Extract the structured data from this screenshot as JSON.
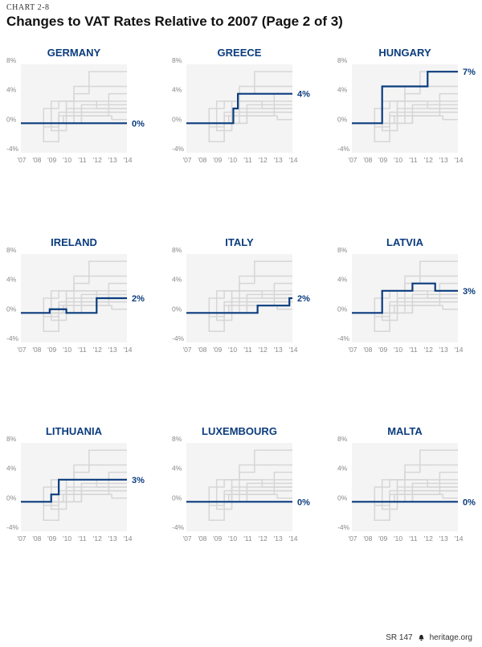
{
  "header": {
    "label": "CHART 2-8",
    "title": "Changes to VAT Rates Relative to 2007 (Page 2 of 3)"
  },
  "footer": {
    "report": "SR 147",
    "site": "heritage.org"
  },
  "colors": {
    "highlight": "#0b3c7e",
    "background_lines": "#d6d6d6",
    "panel_bg": "#f4f4f4",
    "axis_text": "#888888"
  },
  "chart_data": [
    {
      "type": "line",
      "title": "GERMANY",
      "end_label": "0%",
      "x": [
        "'07",
        "'08",
        "'09",
        "'10",
        "'11",
        "'12",
        "'13",
        "'14"
      ],
      "xlim": [
        2007,
        2014
      ],
      "ylim": [
        -4,
        8
      ],
      "yticks": [
        "8%",
        "4%",
        "0%",
        "-4%"
      ],
      "series": [
        {
          "steps": [
            [
              2007,
              0
            ],
            [
              2014,
              0
            ]
          ]
        }
      ]
    },
    {
      "type": "line",
      "title": "GREECE",
      "end_label": "4%",
      "x": [
        "'07",
        "'08",
        "'09",
        "'10",
        "'11",
        "'12",
        "'13",
        "'14"
      ],
      "xlim": [
        2007,
        2014
      ],
      "ylim": [
        -4,
        8
      ],
      "yticks": [
        "8%",
        "4%",
        "0%",
        "-4%"
      ],
      "series": [
        {
          "steps": [
            [
              2007,
              0
            ],
            [
              2010.1,
              2
            ],
            [
              2010.4,
              4
            ],
            [
              2014,
              4
            ]
          ]
        }
      ]
    },
    {
      "type": "line",
      "title": "HUNGARY",
      "end_label": "7%",
      "x": [
        "'07",
        "'08",
        "'09",
        "'10",
        "'11",
        "'12",
        "'13",
        "'14"
      ],
      "xlim": [
        2007,
        2014
      ],
      "ylim": [
        -4,
        8
      ],
      "yticks": [
        "8%",
        "4%",
        "0%",
        "-4%"
      ],
      "series": [
        {
          "steps": [
            [
              2007,
              0
            ],
            [
              2009,
              5
            ],
            [
              2012,
              7
            ],
            [
              2014,
              7
            ]
          ]
        }
      ]
    },
    {
      "type": "line",
      "title": "IRELAND",
      "end_label": "2%",
      "x": [
        "'07",
        "'08",
        "'09",
        "'10",
        "'11",
        "'12",
        "'13",
        "'14"
      ],
      "xlim": [
        2007,
        2014
      ],
      "ylim": [
        -4,
        8
      ],
      "yticks": [
        "8%",
        "4%",
        "0%",
        "-4%"
      ],
      "series": [
        {
          "steps": [
            [
              2007,
              0
            ],
            [
              2008.9,
              0.5
            ],
            [
              2010,
              0
            ],
            [
              2012,
              2
            ],
            [
              2014,
              2
            ]
          ]
        }
      ]
    },
    {
      "type": "line",
      "title": "ITALY",
      "end_label": "2%",
      "x": [
        "'07",
        "'08",
        "'09",
        "'10",
        "'11",
        "'12",
        "'13",
        "'14"
      ],
      "xlim": [
        2007,
        2014
      ],
      "ylim": [
        -4,
        8
      ],
      "yticks": [
        "8%",
        "4%",
        "0%",
        "-4%"
      ],
      "series": [
        {
          "steps": [
            [
              2007,
              0
            ],
            [
              2011.7,
              1
            ],
            [
              2013.8,
              2
            ],
            [
              2014,
              2
            ]
          ]
        }
      ]
    },
    {
      "type": "line",
      "title": "LATVIA",
      "end_label": "3%",
      "x": [
        "'07",
        "'08",
        "'09",
        "'10",
        "'11",
        "'12",
        "'13",
        "'14"
      ],
      "xlim": [
        2007,
        2014
      ],
      "ylim": [
        -4,
        8
      ],
      "yticks": [
        "8%",
        "4%",
        "0%",
        "-4%"
      ],
      "series": [
        {
          "steps": [
            [
              2007,
              0
            ],
            [
              2009,
              3
            ],
            [
              2011,
              4
            ],
            [
              2012.5,
              3
            ],
            [
              2014,
              3
            ]
          ]
        }
      ]
    },
    {
      "type": "line",
      "title": "LITHUANIA",
      "end_label": "3%",
      "x": [
        "'07",
        "'08",
        "'09",
        "'10",
        "'11",
        "'12",
        "'13",
        "'14"
      ],
      "xlim": [
        2007,
        2014
      ],
      "ylim": [
        -4,
        8
      ],
      "yticks": [
        "8%",
        "4%",
        "0%",
        "-4%"
      ],
      "series": [
        {
          "steps": [
            [
              2007,
              0
            ],
            [
              2009,
              1
            ],
            [
              2009.5,
              3
            ],
            [
              2014,
              3
            ]
          ]
        }
      ]
    },
    {
      "type": "line",
      "title": "LUXEMBOURG",
      "end_label": "0%",
      "x": [
        "'07",
        "'08",
        "'09",
        "'10",
        "'11",
        "'12",
        "'13",
        "'14"
      ],
      "xlim": [
        2007,
        2014
      ],
      "ylim": [
        -4,
        8
      ],
      "yticks": [
        "8%",
        "4%",
        "0%",
        "-4%"
      ],
      "series": [
        {
          "steps": [
            [
              2007,
              0
            ],
            [
              2014,
              0
            ]
          ]
        }
      ]
    },
    {
      "type": "line",
      "title": "MALTA",
      "end_label": "0%",
      "x": [
        "'07",
        "'08",
        "'09",
        "'10",
        "'11",
        "'12",
        "'13",
        "'14"
      ],
      "xlim": [
        2007,
        2014
      ],
      "ylim": [
        -4,
        8
      ],
      "yticks": [
        "8%",
        "4%",
        "0%",
        "-4%"
      ],
      "series": [
        {
          "steps": [
            [
              2007,
              0
            ],
            [
              2014,
              0
            ]
          ]
        }
      ]
    }
  ],
  "background_series": [
    [
      [
        2007,
        0
      ],
      [
        2010.5,
        4
      ],
      [
        2011.5,
        7
      ],
      [
        2014,
        7
      ]
    ],
    [
      [
        2007,
        0
      ],
      [
        2009,
        3
      ],
      [
        2010.5,
        5
      ],
      [
        2014,
        5
      ]
    ],
    [
      [
        2007,
        0
      ],
      [
        2008.5,
        2
      ],
      [
        2009.5,
        3
      ],
      [
        2014,
        3
      ]
    ],
    [
      [
        2007,
        0
      ],
      [
        2009,
        -1
      ],
      [
        2010,
        2
      ],
      [
        2014,
        2
      ]
    ],
    [
      [
        2007,
        0
      ],
      [
        2008.5,
        -2.5
      ],
      [
        2009.5,
        0
      ],
      [
        2011,
        2.5
      ],
      [
        2014,
        2.5
      ]
    ],
    [
      [
        2007,
        0
      ],
      [
        2009.5,
        1
      ],
      [
        2011,
        1.5
      ],
      [
        2014,
        1.5
      ]
    ],
    [
      [
        2007,
        0
      ],
      [
        2010,
        3
      ],
      [
        2012,
        2
      ],
      [
        2014,
        2
      ]
    ],
    [
      [
        2007,
        0
      ],
      [
        2009.8,
        1
      ],
      [
        2012.8,
        4
      ],
      [
        2014,
        4
      ]
    ],
    [
      [
        2007,
        0
      ],
      [
        2008.5,
        -0.5
      ],
      [
        2009.5,
        1.5
      ],
      [
        2014,
        1.5
      ]
    ],
    [
      [
        2007,
        0
      ],
      [
        2011,
        1
      ],
      [
        2013,
        0.5
      ],
      [
        2014,
        0.5
      ]
    ]
  ]
}
